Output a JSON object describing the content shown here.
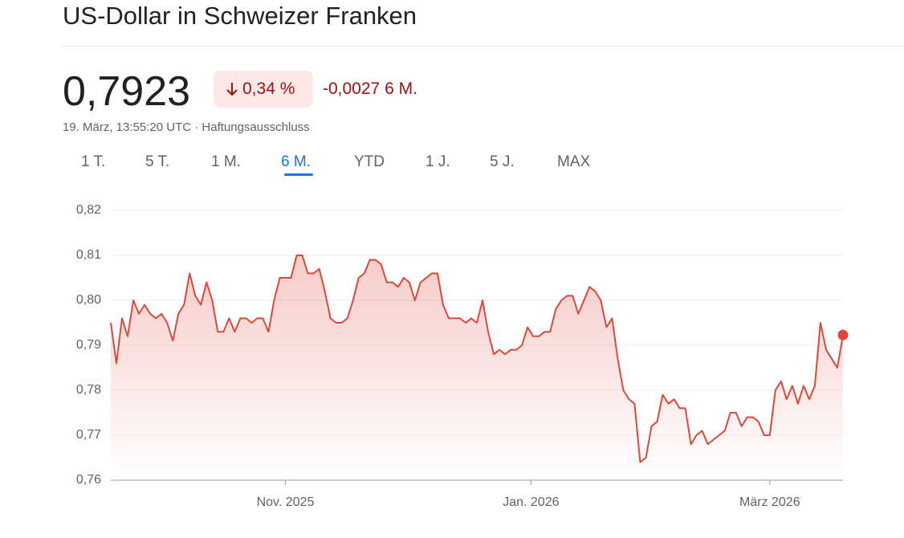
{
  "header": {
    "title": "US-Dollar in Schweizer Franken"
  },
  "quote": {
    "price": "0,7923",
    "change_percent": "0,34 %",
    "change_abs": "-0,0027",
    "period": "6 M.",
    "timestamp": "19. März, 13:55:20 UTC",
    "disclaimer": "Haftungsausschluss"
  },
  "tabs": [
    {
      "label": "1 T.",
      "active": false
    },
    {
      "label": "5 T.",
      "active": false
    },
    {
      "label": "1 M.",
      "active": false
    },
    {
      "label": "6 M.",
      "active": true
    },
    {
      "label": "YTD",
      "active": false
    },
    {
      "label": "1 J.",
      "active": false
    },
    {
      "label": "5 J.",
      "active": false
    },
    {
      "label": "MAX",
      "active": false
    }
  ],
  "chart_data": {
    "type": "line",
    "color": "#e0473a",
    "grid": true,
    "values": [
      0.795,
      0.786,
      0.796,
      0.792,
      0.8,
      0.797,
      0.799,
      0.797,
      0.796,
      0.797,
      0.795,
      0.791,
      0.797,
      0.799,
      0.806,
      0.801,
      0.799,
      0.804,
      0.8,
      0.793,
      0.793,
      0.796,
      0.793,
      0.796,
      0.796,
      0.795,
      0.796,
      0.796,
      0.793,
      0.8,
      0.805,
      0.805,
      0.805,
      0.81,
      0.81,
      0.806,
      0.806,
      0.807,
      0.802,
      0.796,
      0.795,
      0.795,
      0.796,
      0.8,
      0.805,
      0.806,
      0.809,
      0.809,
      0.808,
      0.804,
      0.804,
      0.803,
      0.805,
      0.804,
      0.8,
      0.804,
      0.805,
      0.806,
      0.806,
      0.799,
      0.796,
      0.796,
      0.796,
      0.795,
      0.796,
      0.795,
      0.8,
      0.793,
      0.788,
      0.789,
      0.788,
      0.789,
      0.789,
      0.79,
      0.794,
      0.792,
      0.792,
      0.793,
      0.793,
      0.798,
      0.8,
      0.801,
      0.801,
      0.797,
      0.8,
      0.803,
      0.802,
      0.8,
      0.794,
      0.796,
      0.787,
      0.78,
      0.778,
      0.777,
      0.764,
      0.765,
      0.772,
      0.773,
      0.779,
      0.777,
      0.778,
      0.776,
      0.776,
      0.768,
      0.77,
      0.771,
      0.768,
      0.769,
      0.77,
      0.771,
      0.775,
      0.775,
      0.772,
      0.774,
      0.774,
      0.773,
      0.77,
      0.77,
      0.78,
      0.782,
      0.778,
      0.781,
      0.777,
      0.781,
      0.778,
      0.781,
      0.795,
      0.789,
      0.787,
      0.785,
      0.7923
    ],
    "xlim": [
      0,
      130
    ],
    "xticks": [
      {
        "value": 31,
        "label": "Nov. 2025"
      },
      {
        "value": 74.6,
        "label": "Jan. 2026"
      },
      {
        "value": 117,
        "label": "März 2026"
      }
    ],
    "ylim": [
      0.76,
      0.82
    ],
    "yticks": [
      {
        "value": 0.76,
        "label": "0,76"
      },
      {
        "value": 0.77,
        "label": "0,77"
      },
      {
        "value": 0.78,
        "label": "0,78"
      },
      {
        "value": 0.79,
        "label": "0,79"
      },
      {
        "value": 0.8,
        "label": "0,80"
      },
      {
        "value": 0.81,
        "label": "0,81"
      },
      {
        "value": 0.82,
        "label": "0,82"
      }
    ]
  }
}
